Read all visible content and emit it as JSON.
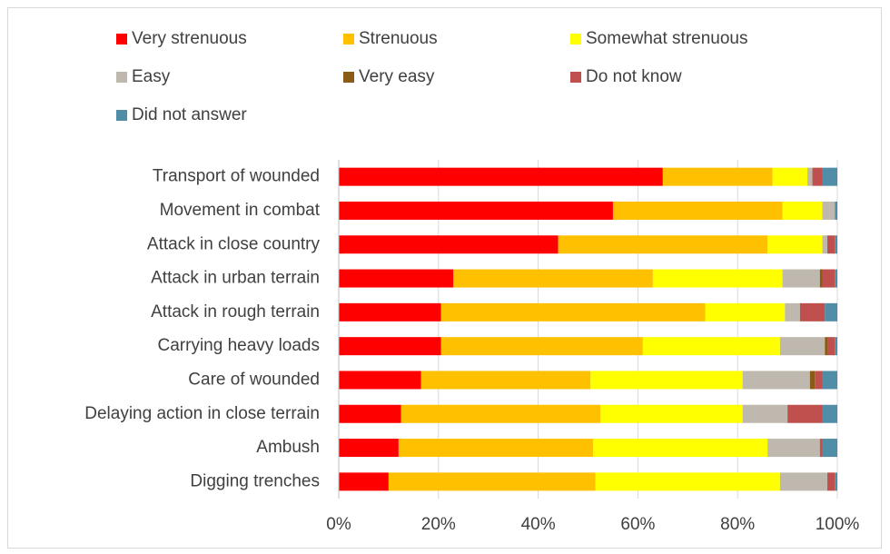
{
  "chart_data": {
    "type": "stacked-bar-horizontal",
    "categories": [
      "Transport of wounded",
      "Movement in combat",
      "Attack in close country",
      "Attack in urban terrain",
      "Attack in rough terrain",
      "Carrying heavy loads",
      "Care of wounded",
      "Delaying action in close terrain",
      "Ambush",
      "Digging trenches"
    ],
    "series": [
      {
        "name": "Very strenuous",
        "color": "#ff0000",
        "values": [
          65,
          55,
          44,
          23,
          20.5,
          20.5,
          16.5,
          12.5,
          12,
          10
        ]
      },
      {
        "name": "Strenuous",
        "color": "#ffc000",
        "values": [
          22,
          34,
          42,
          40,
          53,
          40.5,
          34,
          40,
          39,
          41.5
        ]
      },
      {
        "name": "Somewhat strenuous",
        "color": "#ffff00",
        "values": [
          7,
          8,
          11,
          26,
          16,
          27.5,
          30.5,
          28.5,
          35,
          37
        ]
      },
      {
        "name": "Easy",
        "color": "#bfb8ae",
        "values": [
          1,
          2.5,
          1,
          7.5,
          3,
          9,
          13.5,
          9,
          10.5,
          9.5
        ]
      },
      {
        "name": "Very easy",
        "color": "#8b5a16",
        "values": [
          0,
          0,
          0,
          0.5,
          0,
          0.5,
          1,
          0,
          0,
          0
        ]
      },
      {
        "name": "Do not know",
        "color": "#c0504d",
        "values": [
          2,
          0,
          1.5,
          2.5,
          5,
          1.5,
          1.5,
          7,
          0.5,
          1.5
        ]
      },
      {
        "name": "Did not answer",
        "color": "#4f8ea6",
        "values": [
          3,
          0.5,
          0.5,
          0.5,
          2.5,
          0.5,
          3,
          3,
          3,
          0.5
        ]
      }
    ],
    "xlim": [
      0,
      100
    ],
    "xticks": [
      {
        "value": 0,
        "label": "0%"
      },
      {
        "value": 20,
        "label": "20%"
      },
      {
        "value": 40,
        "label": "40%"
      },
      {
        "value": 60,
        "label": "60%"
      },
      {
        "value": 80,
        "label": "80%"
      },
      {
        "value": 100,
        "label": "100%"
      }
    ],
    "grid": true
  }
}
